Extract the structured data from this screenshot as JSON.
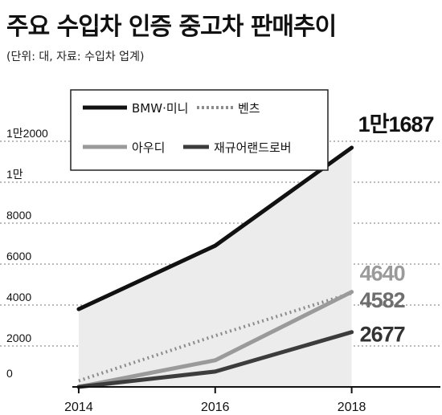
{
  "title": "주요 수입차 인증 중고차 판매추이",
  "unit_note": "(단위: 대, 자료: 수입차 업계)",
  "chart_data": {
    "type": "line",
    "title": "주요 수입차 인증 중고차 판매추이",
    "x": [
      2014,
      2016,
      2018
    ],
    "x_tick_labels": [
      "2014",
      "2016",
      "2018"
    ],
    "y_tick_values": [
      0,
      2000,
      4000,
      6000,
      8000,
      10000,
      12000
    ],
    "y_tick_labels": [
      "0",
      "2000",
      "4000",
      "6000",
      "8000",
      "1만",
      "1만2000"
    ],
    "ylim": [
      0,
      12000
    ],
    "xlim": [
      2013.2,
      2019.3
    ],
    "grid": "horizontal dashed",
    "legend_position": "top-left",
    "series": [
      {
        "name": "BMW·미니",
        "values": [
          3800,
          6900,
          11687
        ],
        "color": "#111111",
        "style": "solid",
        "end_label": "1만1687"
      },
      {
        "name": "벤츠",
        "values": [
          300,
          2500,
          4582
        ],
        "color": "#8c8c8c",
        "style": "dotted",
        "end_label": "4582"
      },
      {
        "name": "아우디",
        "values": [
          0,
          1300,
          4640
        ],
        "color": "#9a9a9a",
        "style": "solid",
        "end_label": "4640"
      },
      {
        "name": "재규어랜드로버",
        "values": [
          0,
          750,
          2677
        ],
        "color": "#3c3c3c",
        "style": "solid",
        "end_label": "2677"
      }
    ],
    "shaded_area": {
      "under_series": "BMW·미니",
      "color": "#ececec"
    }
  }
}
